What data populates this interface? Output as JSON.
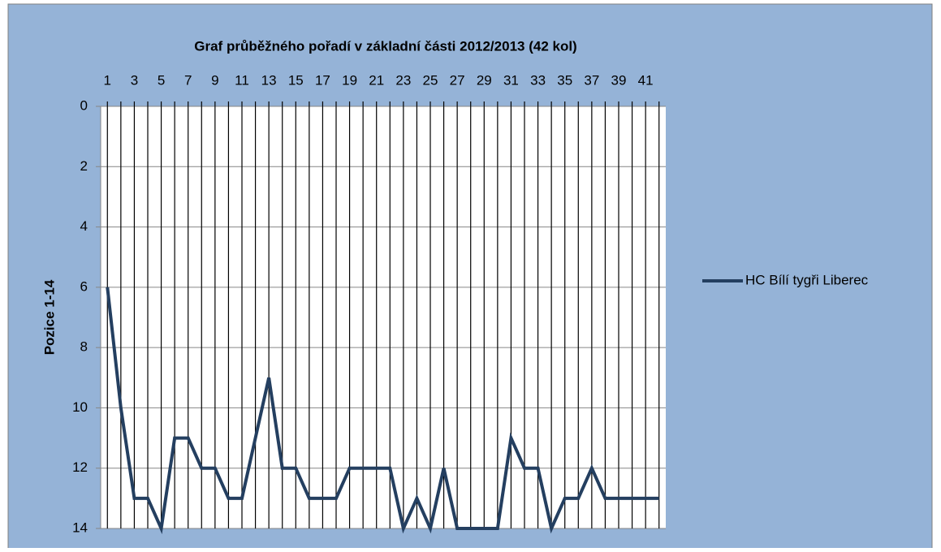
{
  "chart_data": {
    "type": "line",
    "title": "Graf průběžného pořadí v základní části 2012/2013 (42 kol)",
    "y_label": "Pozice 1-14",
    "categories": [
      "1",
      null,
      "3",
      null,
      "5",
      null,
      "7",
      null,
      "9",
      null,
      "11",
      null,
      "13",
      null,
      "15",
      null,
      "17",
      null,
      "19",
      null,
      "21",
      null,
      "23",
      null,
      "25",
      null,
      "27",
      null,
      "29",
      null,
      "31",
      null,
      "33",
      null,
      "35",
      null,
      "37",
      null,
      "39",
      null,
      "41",
      null
    ],
    "series": [
      {
        "name": "HC Bílí tygři Liberec",
        "color": "#243f60",
        "values": [
          6,
          10,
          13,
          13,
          14,
          11,
          11,
          12,
          12,
          13,
          13,
          11,
          9,
          12,
          12,
          13,
          13,
          13,
          12,
          12,
          12,
          12,
          14,
          13,
          14,
          12,
          14,
          14,
          14,
          14,
          11,
          12,
          12,
          14,
          13,
          13,
          12,
          13,
          13,
          13,
          13,
          13
        ]
      }
    ],
    "ylim": [
      0,
      14
    ],
    "yticks": [
      0,
      2,
      4,
      6,
      8,
      10,
      12,
      14
    ],
    "y_reversed": true,
    "grid": true,
    "legend": "right"
  }
}
